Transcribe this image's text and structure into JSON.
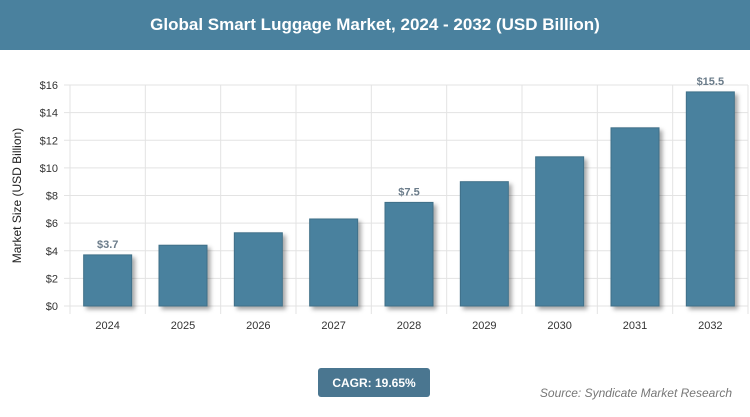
{
  "title": "Global Smart Luggage Market, 2024 - 2032 (USD Billion)",
  "cagr": "CAGR: 19.65%",
  "source": "Source: Syndicate Market Research",
  "chart_data": {
    "type": "bar",
    "categories": [
      "2024",
      "2025",
      "2026",
      "2027",
      "2028",
      "2029",
      "2030",
      "2031",
      "2032"
    ],
    "values": [
      3.7,
      4.4,
      5.3,
      6.3,
      7.5,
      9.0,
      10.8,
      12.9,
      15.5
    ],
    "data_labels": {
      "0": "$3.7",
      "4": "$7.5",
      "8": "$15.5"
    },
    "ylabel": "Market Size (USD Billion)",
    "xlabel": "",
    "ylim": [
      0,
      16
    ],
    "yticks": [
      "$0",
      "$2",
      "$4",
      "$6",
      "$8",
      "$10",
      "$12",
      "$14",
      "$16"
    ],
    "grid": true,
    "bar_color": "#4a819e"
  }
}
